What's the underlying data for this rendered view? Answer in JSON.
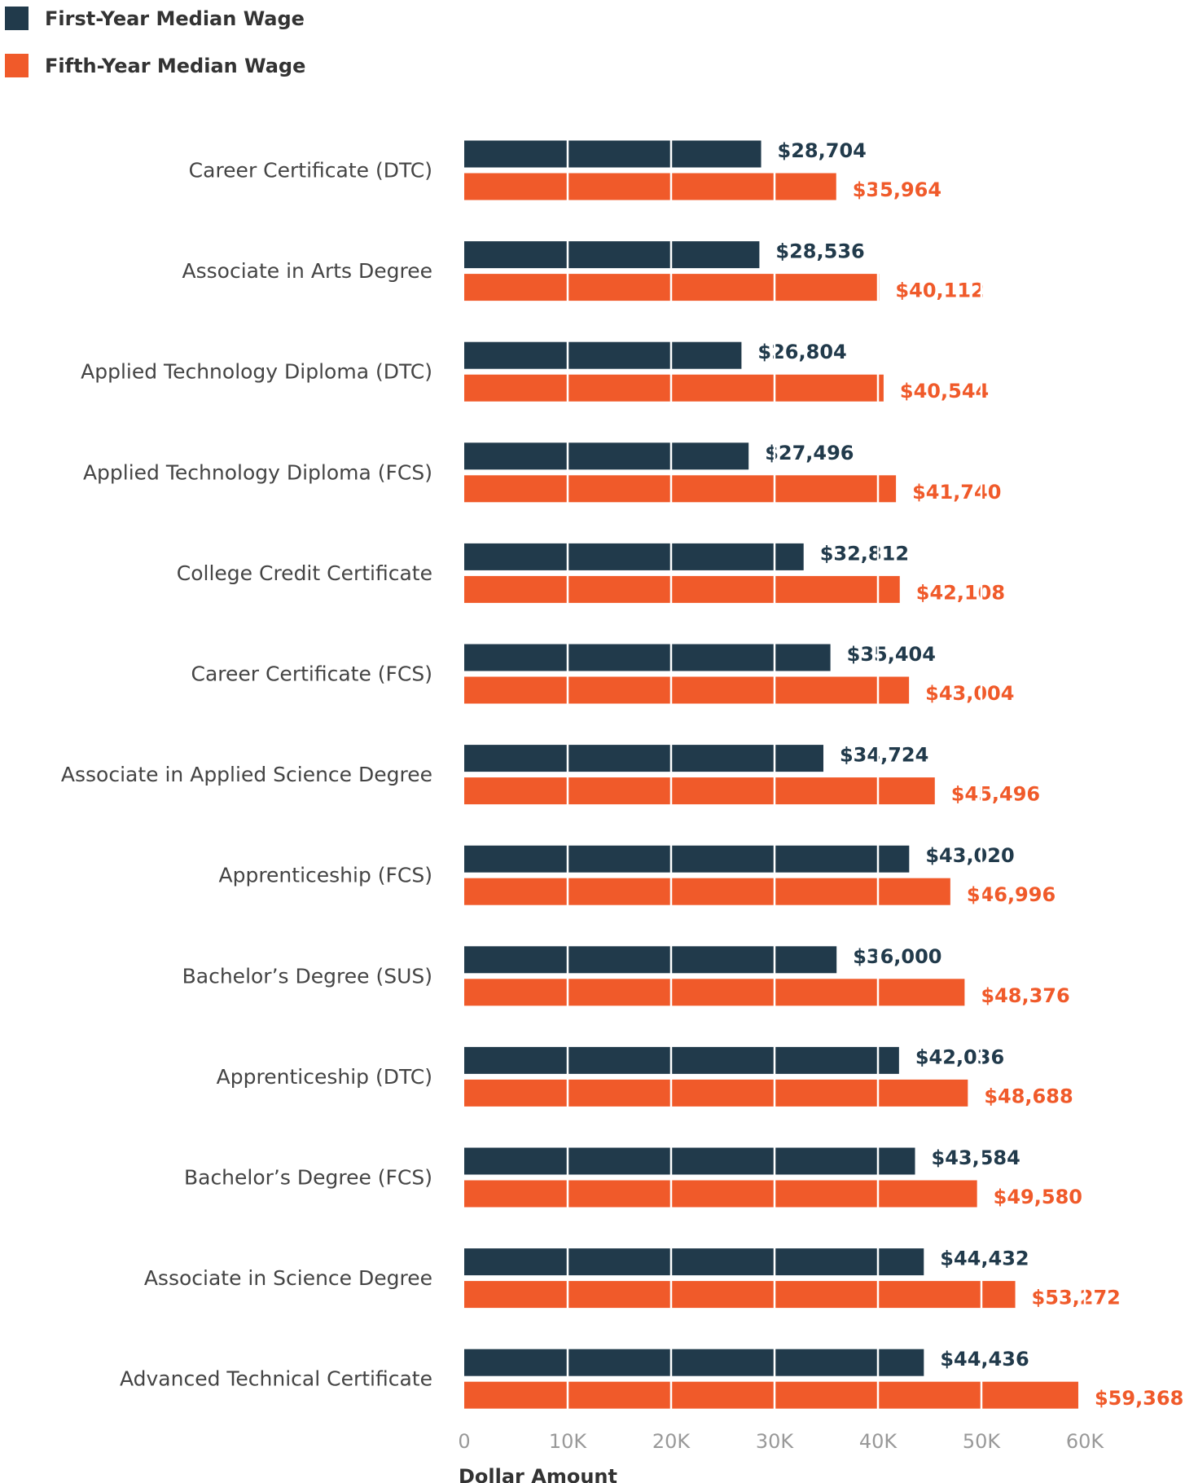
{
  "chart_data": {
    "type": "bar",
    "orientation": "horizontal",
    "x_label": "Dollar Amount",
    "categories": [
      "Career Certificate (DTC)",
      "Associate in Arts Degree",
      "Applied Technology Diploma (DTC)",
      "Applied Technology Diploma (FCS)",
      "College Credit Certificate",
      "Career Certificate (FCS)",
      "Associate in Applied Science Degree",
      "Apprenticeship (FCS)",
      "Bachelor’s Degree (SUS)",
      "Apprenticeship (DTC)",
      "Bachelor’s Degree (FCS)",
      "Associate in Science Degree",
      "Advanced Technical Certificate"
    ],
    "series": [
      {
        "name": "First-Year Median Wage",
        "color": "#213a4b",
        "values": [
          28704,
          28536,
          26804,
          27496,
          32812,
          35404,
          34724,
          43020,
          36000,
          42036,
          43584,
          44432,
          44436
        ],
        "value_labels": [
          "$28,704",
          "$28,536",
          "$26,804",
          "$27,496",
          "$32,812",
          "$35,404",
          "$34,724",
          "$43,020",
          "$36,000",
          "$42,036",
          "$43,584",
          "$44,432",
          "$44,436"
        ]
      },
      {
        "name": "Fifth-Year Median Wage",
        "color": "#f05a2a",
        "values": [
          35964,
          40112,
          40544,
          41740,
          42108,
          43004,
          45496,
          46996,
          48376,
          48688,
          49580,
          53272,
          59368
        ],
        "value_labels": [
          "$35,964",
          "$40,112",
          "$40,544",
          "$41,740",
          "$42,108",
          "$43,004",
          "$45,496",
          "$46,996",
          "$48,376",
          "$48,688",
          "$49,580",
          "$53,272",
          "$59,368"
        ]
      }
    ],
    "xlim": [
      0,
      60000
    ],
    "xticks": [
      0,
      {
        "value": 10000,
        "label": "10K"
      },
      {
        "value": 20000,
        "label": "20K"
      },
      {
        "value": 30000,
        "label": "30K"
      },
      {
        "value": 40000,
        "label": "40K"
      },
      {
        "value": 50000,
        "label": "50K"
      },
      {
        "value": 60000,
        "label": "60K"
      }
    ],
    "grid": true,
    "legend": "top-left"
  }
}
